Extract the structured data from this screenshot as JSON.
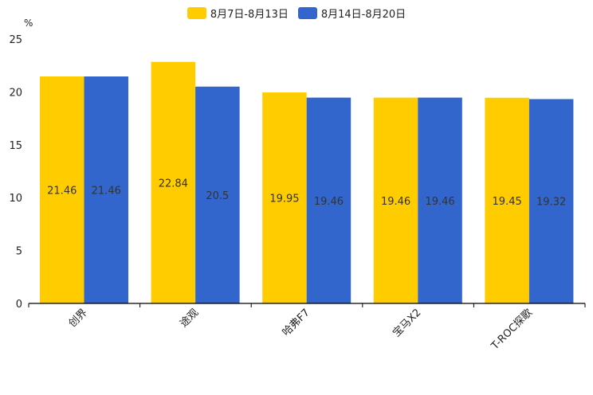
{
  "chart_data": {
    "type": "bar",
    "title": "",
    "xlabel": "",
    "ylabel": "%",
    "ylim": [
      0,
      25
    ],
    "yticks": [
      0,
      5,
      10,
      15,
      20,
      25
    ],
    "categories": [
      "创界",
      "途观",
      "哈弗F7",
      "宝马X2",
      "T-ROC探歌"
    ],
    "series": [
      {
        "name": "8月7日-8月13日",
        "color": "#FFCC00",
        "values": [
          21.46,
          22.84,
          19.95,
          19.46,
          19.45
        ]
      },
      {
        "name": "8月14日-8月20日",
        "color": "#3366CC",
        "values": [
          21.46,
          20.5,
          19.46,
          19.46,
          19.32
        ]
      }
    ],
    "legend_position": "top-center",
    "grid": false
  }
}
